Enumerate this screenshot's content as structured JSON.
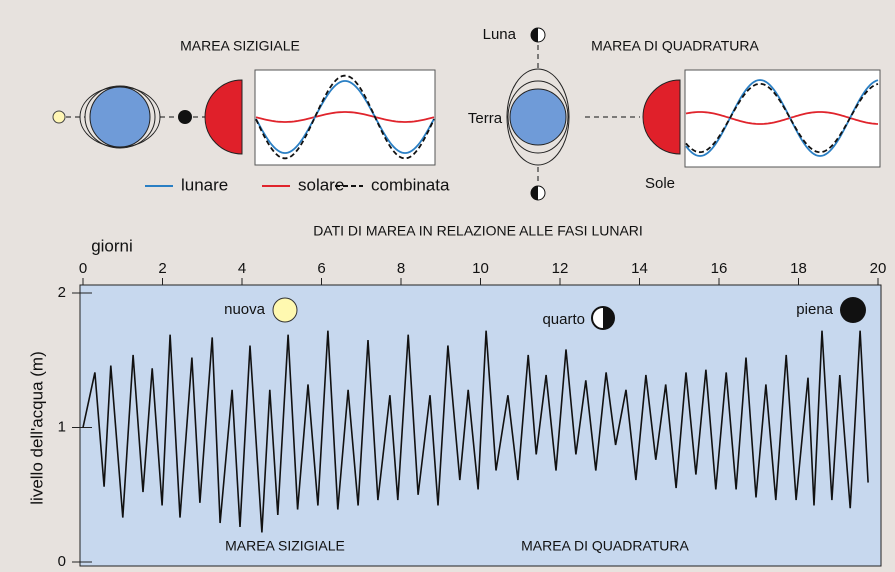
{
  "diagram": {
    "spring": {
      "title": "MAREA SIZIGIALE"
    },
    "neap": {
      "title": "MAREA DI QUADRATURA",
      "moon": "Luna",
      "earth": "Terra",
      "sun": "Sole"
    },
    "legend": [
      {
        "name": "lunare",
        "color": "#2a7fc4"
      },
      {
        "name": "solare",
        "color": "#e0242c"
      },
      {
        "name": "combinata",
        "color": "#111111",
        "dashed": true
      }
    ]
  },
  "chart_data": {
    "type": "line",
    "title": "DATI DI MAREA IN RELAZIONE ALLE FASI LUNARI",
    "x_label": "giorni",
    "y_label": "livello dell'acqua (m)",
    "annotations": [
      "nuova",
      "quarto",
      "piena"
    ],
    "regions": [
      "MAREA SIZIGIALE",
      "MAREA DI QUADRATURA"
    ],
    "x": [
      0,
      0.3,
      0.53,
      0.7,
      1.0,
      1.26,
      1.51,
      1.74,
      1.99,
      2.19,
      2.44,
      2.74,
      2.94,
      3.25,
      3.45,
      3.75,
      3.95,
      4.2,
      4.5,
      4.7,
      4.9,
      5.16,
      5.4,
      5.66,
      5.91,
      6.16,
      6.41,
      6.67,
      6.92,
      7.17,
      7.42,
      7.72,
      7.92,
      8.18,
      8.43,
      8.73,
      8.93,
      9.18,
      9.48,
      9.69,
      9.94,
      10.14,
      10.39,
      10.69,
      10.94,
      11.2,
      11.4,
      11.65,
      11.9,
      12.15,
      12.4,
      12.65,
      12.9,
      13.16,
      13.4,
      13.66,
      13.91,
      14.16,
      14.41,
      14.66,
      14.92,
      15.17,
      15.42,
      15.67,
      15.92,
      16.18,
      16.43,
      16.68,
      16.93,
      17.18,
      17.43,
      17.69,
      17.94,
      18.24,
      18.39,
      18.59,
      18.84,
      19.04,
      19.3,
      19.55,
      19.75
    ],
    "series": [
      {
        "color": "#111111",
        "values": [
          1.0,
          1.41,
          0.56,
          1.46,
          0.33,
          1.54,
          0.52,
          1.44,
          0.42,
          1.69,
          0.33,
          1.52,
          0.44,
          1.67,
          0.29,
          1.28,
          0.26,
          1.61,
          0.22,
          1.28,
          0.35,
          1.69,
          0.39,
          1.32,
          0.42,
          1.72,
          0.39,
          1.28,
          0.42,
          1.65,
          0.46,
          1.24,
          0.46,
          1.69,
          0.5,
          1.24,
          0.42,
          1.61,
          0.61,
          1.28,
          0.54,
          1.72,
          0.68,
          1.24,
          0.61,
          1.54,
          0.8,
          1.39,
          0.68,
          1.58,
          0.8,
          1.35,
          0.68,
          1.41,
          0.87,
          1.28,
          0.61,
          1.39,
          0.76,
          1.32,
          0.55,
          1.41,
          0.65,
          1.43,
          0.54,
          1.41,
          0.54,
          1.52,
          0.48,
          1.32,
          0.46,
          1.54,
          0.46,
          1.37,
          0.42,
          1.72,
          0.46,
          1.39,
          0.4,
          1.72,
          0.59
        ]
      }
    ],
    "xlim": [
      0,
      20
    ],
    "ylim": [
      0,
      2
    ],
    "xticks": [
      0,
      2,
      4,
      6,
      8,
      10,
      12,
      14,
      16,
      18,
      20
    ],
    "yticks": [
      0,
      1,
      2
    ]
  }
}
